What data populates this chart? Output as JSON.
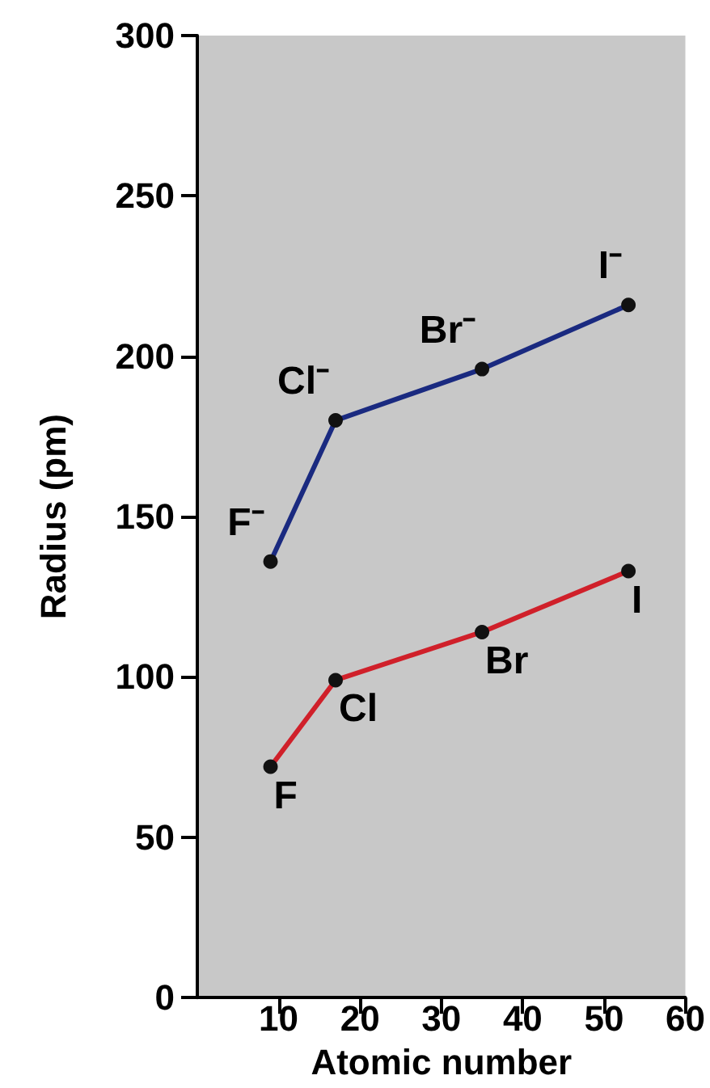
{
  "chart_data": {
    "type": "line",
    "xlabel": "Atomic number",
    "ylabel": "Radius (pm)",
    "xlim": [
      0,
      60
    ],
    "xticks": [
      10,
      20,
      30,
      40,
      50,
      60
    ],
    "ylim": [
      0,
      300
    ],
    "yticks": [
      0,
      50,
      100,
      150,
      200,
      250,
      300
    ],
    "grid": false,
    "marker": "circle",
    "line_style": "solid",
    "series": [
      {
        "color": "#d0202a",
        "x": [
          9,
          17,
          35,
          53
        ],
        "values": [
          72,
          99,
          114,
          133
        ]
      },
      {
        "color": "#1a2a80",
        "x": [
          9,
          17,
          35,
          53
        ],
        "values": [
          136,
          180,
          196,
          216
        ]
      }
    ],
    "annotations": [
      {
        "text": "F",
        "x": 9,
        "y": 72
      },
      {
        "text": "Cl",
        "x": 17,
        "y": 99
      },
      {
        "text": "Br",
        "x": 35,
        "y": 114
      },
      {
        "text": "I",
        "x": 53,
        "y": 133
      },
      {
        "text": "F⁻",
        "x": 9,
        "y": 136
      },
      {
        "text": "Cl⁻",
        "x": 17,
        "y": 180
      },
      {
        "text": "Br⁻",
        "x": 35,
        "y": 196
      },
      {
        "text": "I⁻",
        "x": 53,
        "y": 216
      }
    ]
  }
}
